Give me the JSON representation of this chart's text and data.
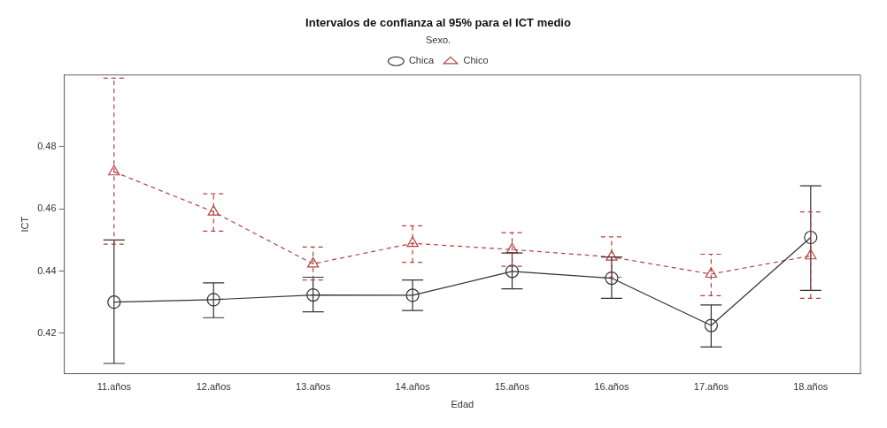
{
  "chart_data": {
    "type": "line",
    "title": "Intervalos de confianza al 95% para el ICT medio",
    "xlabel": "Edad",
    "ylabel": "ICT",
    "legend_title": "Sexo.",
    "legend": "top",
    "grid": false,
    "categories": [
      "11.años",
      "12.años",
      "13.años",
      "14.años",
      "15.años",
      "16.años",
      "17.años",
      "18.años"
    ],
    "ylim": [
      0.407,
      0.503
    ],
    "yticks": [
      0.42,
      0.44,
      0.46,
      0.48
    ],
    "series": [
      {
        "name": "Chica",
        "color": "#333333",
        "marker": "circle",
        "line_style": "solid",
        "values": [
          0.43,
          0.4308,
          0.4323,
          0.4322,
          0.4399,
          0.4377,
          0.4225,
          0.4508
        ],
        "errors": [
          [
            0.4103,
            0.45
          ],
          [
            0.425,
            0.4362
          ],
          [
            0.4269,
            0.438
          ],
          [
            0.4273,
            0.4371
          ],
          [
            0.4343,
            0.4458
          ],
          [
            0.4312,
            0.4445
          ],
          [
            0.4156,
            0.4291
          ],
          [
            0.4338,
            0.4674
          ]
        ]
      },
      {
        "name": "Chico",
        "color": "#b5413f",
        "marker": "triangle",
        "line_style": "dashed",
        "values": [
          0.4719,
          0.459,
          0.4423,
          0.4489,
          0.4469,
          0.4445,
          0.439,
          0.4449
        ],
        "errors": [
          [
            0.4486,
            0.502
          ],
          [
            0.4528,
            0.4648
          ],
          [
            0.4371,
            0.4477
          ],
          [
            0.4428,
            0.4545
          ],
          [
            0.4415,
            0.4523
          ],
          [
            0.438,
            0.451
          ],
          [
            0.4321,
            0.4454
          ],
          [
            0.4312,
            0.459
          ]
        ]
      }
    ]
  }
}
